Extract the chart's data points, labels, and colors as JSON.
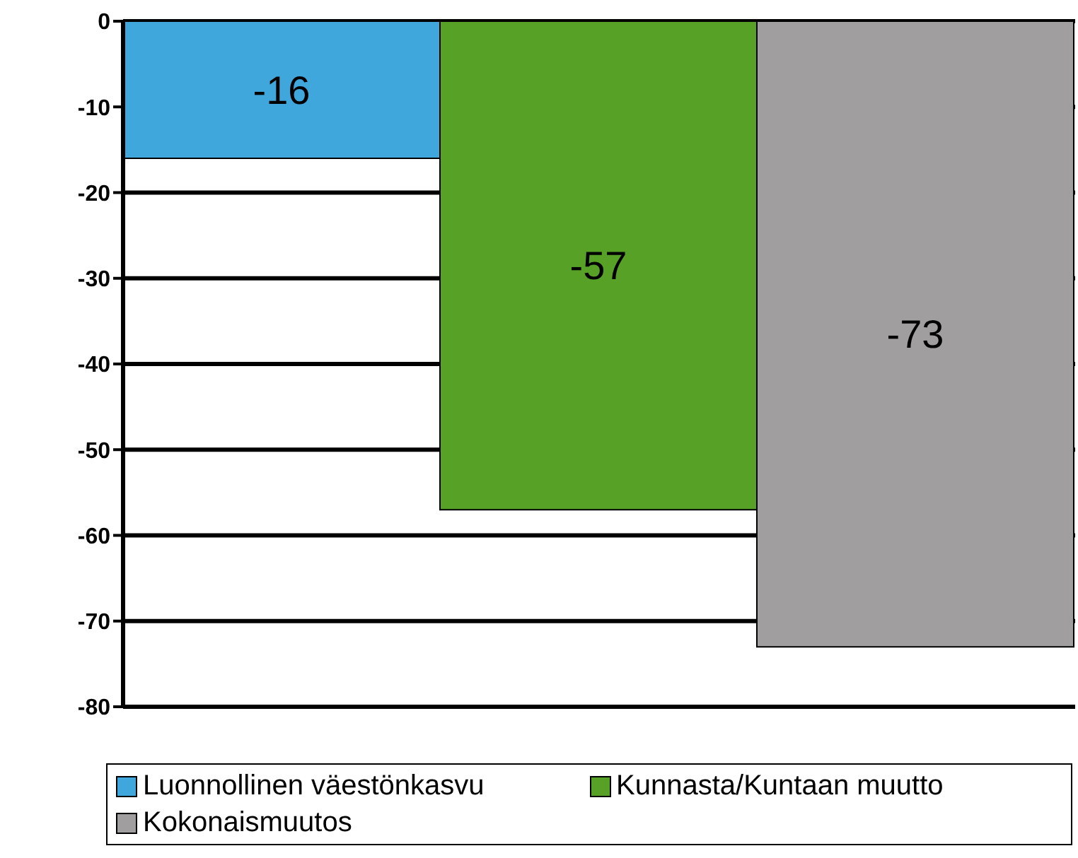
{
  "chart_data": {
    "type": "bar",
    "categories": [
      null
    ],
    "series": [
      {
        "name": "Luonnollinen väestönkasvu",
        "color": "#3fa7dc",
        "values": [
          -16
        ]
      },
      {
        "name": "Kunnasta/Kuntaan muutto",
        "color": "#56a126",
        "values": [
          -57
        ]
      },
      {
        "name": "Kokonaismuutos",
        "color": "#a09e9f",
        "values": [
          -73
        ]
      }
    ],
    "ylim": [
      -80,
      0
    ],
    "yticks": [
      -80,
      -70,
      -60,
      -50,
      -40,
      -30,
      -20,
      -10,
      0
    ],
    "grid": "y",
    "legend": "bottom",
    "data_labels": true
  }
}
